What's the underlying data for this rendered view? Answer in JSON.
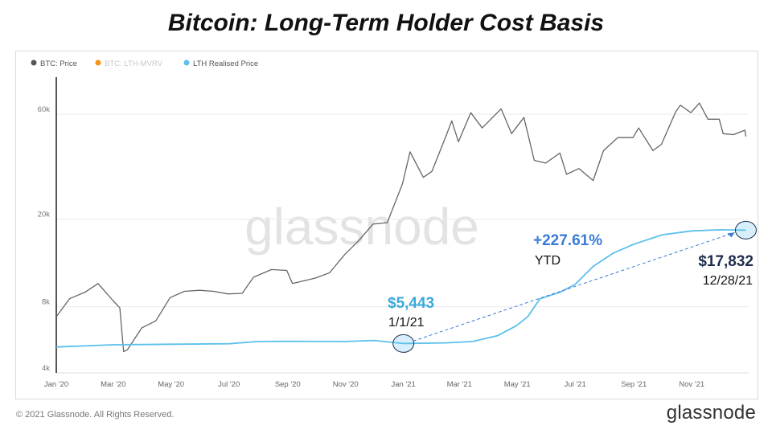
{
  "title": "Bitcoin: Long-Term Holder Cost Basis",
  "footer": {
    "copyright": "© 2021 Glassnode. All Rights Reserved.",
    "brand": "glassnode"
  },
  "watermark": "glassnode",
  "colors": {
    "price": "#666666",
    "mvrv": "#f7931a",
    "lth": "#5bc0eb",
    "annotation_blue": "#3a7bd5",
    "annotation_navy": "#1f2d4d"
  },
  "legend": [
    {
      "label": "BTC: Price",
      "color": "#555555",
      "faded": false
    },
    {
      "label": "BTC: LTH-MVRV",
      "color": "#f7931a",
      "faded": true
    },
    {
      "label": "LTH Realised Price",
      "color": "#5bc0eb",
      "faded": false
    }
  ],
  "annotations": {
    "start_value": "$5,443",
    "start_date": "1/1/21",
    "change_value": "+227.61%",
    "change_label": "YTD",
    "end_value": "$17,832",
    "end_date": "12/28/21"
  },
  "chart_data": {
    "type": "line",
    "title": "Bitcoin: Long-Term Holder Cost Basis",
    "y_scale": "log",
    "ylim": [
      4000,
      90000
    ],
    "y_ticks": [
      {
        "value": 4000,
        "label": "4k"
      },
      {
        "value": 8000,
        "label": "8k"
      },
      {
        "value": 20000,
        "label": "20k"
      },
      {
        "value": 60000,
        "label": "60k"
      }
    ],
    "x_range": [
      "2020-01-01",
      "2021-12-31"
    ],
    "x_ticks": [
      {
        "date": "2020-01-01",
        "label": "Jan '20"
      },
      {
        "date": "2020-03-01",
        "label": "Mar '20"
      },
      {
        "date": "2020-05-01",
        "label": "May '20"
      },
      {
        "date": "2020-07-01",
        "label": "Jul '20"
      },
      {
        "date": "2020-09-01",
        "label": "Sep '20"
      },
      {
        "date": "2020-11-01",
        "label": "Nov '20"
      },
      {
        "date": "2021-01-01",
        "label": "Jan '21"
      },
      {
        "date": "2021-03-01",
        "label": "Mar '21"
      },
      {
        "date": "2021-05-01",
        "label": "May '21"
      },
      {
        "date": "2021-07-01",
        "label": "Jul '21"
      },
      {
        "date": "2021-09-01",
        "label": "Sep '21"
      },
      {
        "date": "2021-11-01",
        "label": "Nov '21"
      }
    ],
    "grid": true,
    "legend_position": "top-left",
    "series": [
      {
        "name": "BTC: Price",
        "points": [
          [
            "2020-01-01",
            7200
          ],
          [
            "2020-01-15",
            8700
          ],
          [
            "2020-02-01",
            9350
          ],
          [
            "2020-02-14",
            10200
          ],
          [
            "2020-02-29",
            8600
          ],
          [
            "2020-03-08",
            7900
          ],
          [
            "2020-03-12",
            5000
          ],
          [
            "2020-03-16",
            5100
          ],
          [
            "2020-03-31",
            6400
          ],
          [
            "2020-04-15",
            6900
          ],
          [
            "2020-04-30",
            8800
          ],
          [
            "2020-05-15",
            9400
          ],
          [
            "2020-05-31",
            9500
          ],
          [
            "2020-06-15",
            9400
          ],
          [
            "2020-06-30",
            9150
          ],
          [
            "2020-07-15",
            9200
          ],
          [
            "2020-07-27",
            10900
          ],
          [
            "2020-08-15",
            11800
          ],
          [
            "2020-08-31",
            11700
          ],
          [
            "2020-09-06",
            10200
          ],
          [
            "2020-09-30",
            10800
          ],
          [
            "2020-10-15",
            11400
          ],
          [
            "2020-10-31",
            13800
          ],
          [
            "2020-11-15",
            16000
          ],
          [
            "2020-11-30",
            19000
          ],
          [
            "2020-12-15",
            19300
          ],
          [
            "2020-12-31",
            29000
          ],
          [
            "2021-01-08",
            40500
          ],
          [
            "2021-01-22",
            31000
          ],
          [
            "2021-01-31",
            33000
          ],
          [
            "2021-02-15",
            48000
          ],
          [
            "2021-02-21",
            56000
          ],
          [
            "2021-02-28",
            45000
          ],
          [
            "2021-03-13",
            61000
          ],
          [
            "2021-03-25",
            52000
          ],
          [
            "2021-04-14",
            63500
          ],
          [
            "2021-04-25",
            49000
          ],
          [
            "2021-05-08",
            58000
          ],
          [
            "2021-05-19",
            37000
          ],
          [
            "2021-05-31",
            36000
          ],
          [
            "2021-06-15",
            40000
          ],
          [
            "2021-06-22",
            32000
          ],
          [
            "2021-07-05",
            34000
          ],
          [
            "2021-07-20",
            30000
          ],
          [
            "2021-07-31",
            41000
          ],
          [
            "2021-08-15",
            47000
          ],
          [
            "2021-08-31",
            47000
          ],
          [
            "2021-09-06",
            52000
          ],
          [
            "2021-09-21",
            41000
          ],
          [
            "2021-09-30",
            43800
          ],
          [
            "2021-10-15",
            61500
          ],
          [
            "2021-10-20",
            66000
          ],
          [
            "2021-10-31",
            61000
          ],
          [
            "2021-11-09",
            67500
          ],
          [
            "2021-11-18",
            57000
          ],
          [
            "2021-11-30",
            57000
          ],
          [
            "2021-12-04",
            49000
          ],
          [
            "2021-12-15",
            48500
          ],
          [
            "2021-12-27",
            50800
          ],
          [
            "2021-12-28",
            47500
          ]
        ]
      },
      {
        "name": "LTH Realised Price",
        "points": [
          [
            "2020-01-01",
            5250
          ],
          [
            "2020-03-01",
            5370
          ],
          [
            "2020-05-01",
            5400
          ],
          [
            "2020-07-01",
            5430
          ],
          [
            "2020-08-01",
            5560
          ],
          [
            "2020-09-01",
            5570
          ],
          [
            "2020-11-01",
            5560
          ],
          [
            "2020-12-01",
            5620
          ],
          [
            "2021-01-01",
            5443
          ],
          [
            "2021-02-15",
            5480
          ],
          [
            "2021-03-15",
            5560
          ],
          [
            "2021-04-10",
            5900
          ],
          [
            "2021-04-30",
            6550
          ],
          [
            "2021-05-12",
            7200
          ],
          [
            "2021-05-25",
            8700
          ],
          [
            "2021-06-15",
            9300
          ],
          [
            "2021-07-01",
            10100
          ],
          [
            "2021-07-20",
            12200
          ],
          [
            "2021-08-10",
            14000
          ],
          [
            "2021-09-01",
            15400
          ],
          [
            "2021-10-01",
            17000
          ],
          [
            "2021-11-01",
            17700
          ],
          [
            "2021-12-01",
            17900
          ],
          [
            "2021-12-28",
            17832
          ]
        ]
      }
    ]
  }
}
